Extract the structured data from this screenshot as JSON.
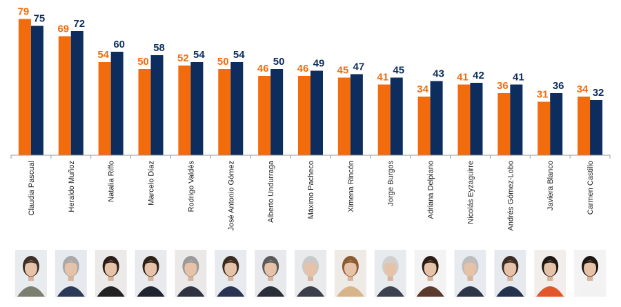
{
  "chart_data": {
    "type": "bar",
    "title": "",
    "xlabel": "",
    "ylabel": "",
    "ylim": [
      0,
      80
    ],
    "grid": false,
    "legend": "none",
    "categories": [
      "Claudia Pascual",
      "Heraldo Muñoz",
      "Natalia Riffo",
      "Marcelo Díaz",
      "Rodrigo Valdés",
      "José Antonio Gómez",
      "Alberto Undurraga",
      "Máximo Pacheco",
      "Ximena Rincón",
      "Jorge Burgos",
      "Adriana Delpiano",
      "Nicolás Eyzaguirre",
      "Andrés Gómez-Lobo",
      "Javiera Blanco",
      "Carmen Castillo"
    ],
    "series": [
      {
        "color": "#f26c0d",
        "values": [
          79,
          69,
          54,
          50,
          52,
          50,
          46,
          46,
          45,
          41,
          34,
          41,
          36,
          31,
          34
        ]
      },
      {
        "color": "#0c2d5e",
        "values": [
          75,
          72,
          60,
          58,
          54,
          54,
          50,
          49,
          47,
          45,
          43,
          42,
          41,
          36,
          32
        ]
      }
    ]
  },
  "photos": {
    "icon": "person-portrait-icon",
    "backgrounds": [
      "#e9ecef",
      "#e6e9ee",
      "#eceae8",
      "#e8eaee",
      "#ebe9e8",
      "#e7eaee",
      "#e8e9ec",
      "#e9eaec",
      "#eeeae6",
      "#e8ebee",
      "#f3f3f3",
      "#e7eaee",
      "#e6e9ee",
      "#f1eeec",
      "#f3f3f3"
    ],
    "clothing": [
      "#7a7f6e",
      "#2c3a57",
      "#222222",
      "#1f2430",
      "#2f3440",
      "#283452",
      "#2a2e38",
      "#3a3f4a",
      "#d8b48a",
      "#3b4250",
      "#5a3a2a",
      "#2d3548",
      "#24324e",
      "#e2562b",
      "#f2f2f2"
    ],
    "hair": [
      "#3d3028",
      "#a9a9a9",
      "#2a1d17",
      "#2b2118",
      "#9a9a9a",
      "#3a2b20",
      "#5a5a5a",
      "#c9c9c9",
      "#8a5a32",
      "#d0d0d0",
      "#2a1b14",
      "#bdbdbd",
      "#3a2c22",
      "#1e1712",
      "#1c1612"
    ]
  }
}
